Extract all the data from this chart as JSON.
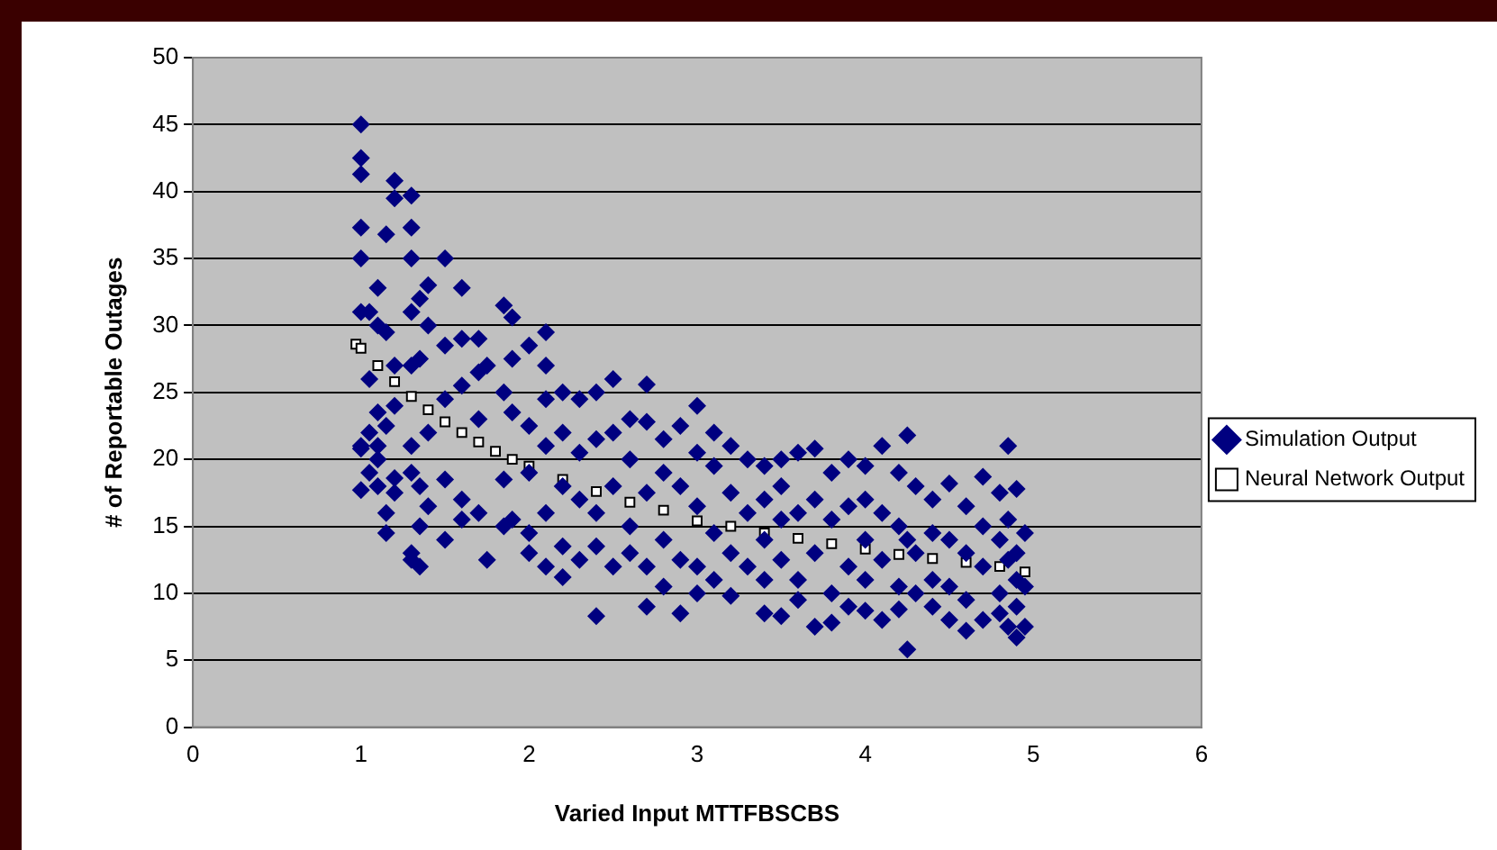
{
  "chart_data": {
    "type": "scatter",
    "xlabel": "Varied Input MTTFBSCBS",
    "ylabel": "# of Reportable Outages",
    "xlim": [
      0,
      6
    ],
    "xticks": [
      0,
      1,
      2,
      3,
      4,
      5,
      6
    ],
    "ylim": [
      0,
      50
    ],
    "yticks": [
      0,
      5,
      10,
      15,
      20,
      25,
      30,
      35,
      40,
      45,
      50
    ],
    "grid": "y",
    "legend": "right",
    "series": [
      {
        "name": "Simulation Output",
        "color": "#000080",
        "marker": "diamond",
        "x": [
          1.0,
          1.0,
          1.0,
          1.0,
          1.0,
          1.0,
          1.0,
          1.0,
          1.0,
          1.05,
          1.05,
          1.05,
          1.05,
          1.1,
          1.1,
          1.1,
          1.1,
          1.1,
          1.1,
          1.15,
          1.15,
          1.15,
          1.15,
          1.15,
          1.2,
          1.2,
          1.2,
          1.2,
          1.2,
          1.2,
          1.3,
          1.3,
          1.3,
          1.3,
          1.3,
          1.3,
          1.3,
          1.3,
          1.3,
          1.35,
          1.35,
          1.35,
          1.35,
          1.35,
          1.4,
          1.4,
          1.4,
          1.4,
          1.5,
          1.5,
          1.5,
          1.5,
          1.5,
          1.6,
          1.6,
          1.6,
          1.6,
          1.6,
          1.7,
          1.7,
          1.7,
          1.7,
          1.75,
          1.75,
          1.85,
          1.85,
          1.85,
          1.85,
          1.9,
          1.9,
          1.9,
          1.9,
          2.0,
          2.0,
          2.0,
          2.0,
          2.0,
          2.1,
          2.1,
          2.1,
          2.1,
          2.1,
          2.1,
          2.2,
          2.2,
          2.2,
          2.2,
          2.2,
          2.3,
          2.3,
          2.3,
          2.3,
          2.4,
          2.4,
          2.4,
          2.4,
          2.4,
          2.5,
          2.5,
          2.5,
          2.5,
          2.6,
          2.6,
          2.6,
          2.6,
          2.7,
          2.7,
          2.7,
          2.7,
          2.7,
          2.8,
          2.8,
          2.8,
          2.8,
          2.9,
          2.9,
          2.9,
          2.9,
          3.0,
          3.0,
          3.0,
          3.0,
          3.0,
          3.1,
          3.1,
          3.1,
          3.1,
          3.2,
          3.2,
          3.2,
          3.2,
          3.3,
          3.3,
          3.3,
          3.4,
          3.4,
          3.4,
          3.4,
          3.4,
          3.5,
          3.5,
          3.5,
          3.5,
          3.5,
          3.6,
          3.6,
          3.6,
          3.6,
          3.7,
          3.7,
          3.7,
          3.7,
          3.8,
          3.8,
          3.8,
          3.8,
          3.9,
          3.9,
          3.9,
          3.9,
          4.0,
          4.0,
          4.0,
          4.0,
          4.0,
          4.1,
          4.1,
          4.1,
          4.1,
          4.2,
          4.2,
          4.2,
          4.2,
          4.25,
          4.25,
          4.25,
          4.3,
          4.3,
          4.3,
          4.4,
          4.4,
          4.4,
          4.4,
          4.5,
          4.5,
          4.5,
          4.5,
          4.6,
          4.6,
          4.6,
          4.6,
          4.7,
          4.7,
          4.7,
          4.7,
          4.8,
          4.8,
          4.8,
          4.8,
          4.85,
          4.85,
          4.85,
          4.85,
          4.9,
          4.9,
          4.9,
          4.9,
          4.9,
          4.95,
          4.95,
          4.95
        ],
        "values": [
          45,
          42.5,
          41.3,
          37.3,
          35,
          31,
          21,
          20.8,
          17.7,
          31,
          26,
          22,
          19,
          32.8,
          30,
          23.5,
          21,
          18,
          20,
          36.8,
          29.5,
          22.5,
          16,
          14.5,
          40.8,
          39.5,
          27,
          24,
          18.6,
          17.5,
          39.7,
          37.3,
          35,
          31,
          27,
          21,
          19,
          13,
          12.5,
          32,
          27.5,
          18,
          15,
          12,
          33,
          30,
          22,
          16.5,
          35,
          28.5,
          24.5,
          18.5,
          14,
          32.8,
          29,
          25.5,
          17,
          15.5,
          29,
          26.5,
          23,
          16,
          27,
          12.5,
          31.5,
          25,
          18.5,
          15,
          30.6,
          27.5,
          23.5,
          15.5,
          28.5,
          22.5,
          19,
          14.5,
          13,
          29.5,
          27,
          24.5,
          21,
          16,
          12,
          25,
          22,
          18,
          13.5,
          11.2,
          24.5,
          20.5,
          17,
          12.5,
          25,
          21.5,
          16,
          8.3,
          13.5,
          26,
          22,
          18,
          12,
          23,
          20,
          15,
          13,
          25.6,
          22.8,
          17.5,
          12,
          9,
          21.5,
          19,
          14,
          10.5,
          22.5,
          18,
          12.5,
          8.5,
          24,
          20.5,
          16.5,
          12,
          10,
          22,
          19.5,
          14.5,
          11,
          21,
          17.5,
          13,
          9.8,
          20,
          16,
          12,
          19.5,
          17,
          14,
          8.5,
          11,
          20,
          18,
          15.5,
          8.3,
          12.5,
          20.5,
          16,
          11,
          9.5,
          20.8,
          17,
          13,
          7.5,
          19,
          15.5,
          10,
          7.8,
          20,
          16.5,
          12,
          9,
          19.5,
          17,
          14,
          11,
          8.7,
          21,
          16,
          12.5,
          8,
          19,
          15,
          10.5,
          8.8,
          21.8,
          14,
          5.8,
          18,
          13,
          10,
          17,
          14.5,
          11,
          9,
          18.2,
          14,
          10.5,
          8,
          16.5,
          13,
          9.5,
          7.2,
          18.7,
          15,
          12,
          8,
          17.5,
          14,
          10,
          8.5,
          21,
          15.5,
          12.5,
          7.5,
          17.8,
          13,
          11,
          9,
          6.7,
          14.5,
          10.5,
          7.5
        ]
      },
      {
        "name": "Neural Network Output",
        "color": "#ffffff",
        "marker": "square",
        "x": [
          0.97,
          1.0,
          1.1,
          1.2,
          1.3,
          1.4,
          1.5,
          1.6,
          1.7,
          1.8,
          1.9,
          2.0,
          2.2,
          2.4,
          2.6,
          2.8,
          3.0,
          3.2,
          3.4,
          3.6,
          3.8,
          4.0,
          4.2,
          4.4,
          4.6,
          4.8,
          4.95
        ],
        "values": [
          28.6,
          28.3,
          27.0,
          25.8,
          24.7,
          23.7,
          22.8,
          22.0,
          21.3,
          20.6,
          20.0,
          19.5,
          18.5,
          17.6,
          16.8,
          16.2,
          15.4,
          15.0,
          14.5,
          14.1,
          13.7,
          13.3,
          12.9,
          12.6,
          12.3,
          12.0,
          11.6
        ]
      }
    ]
  }
}
